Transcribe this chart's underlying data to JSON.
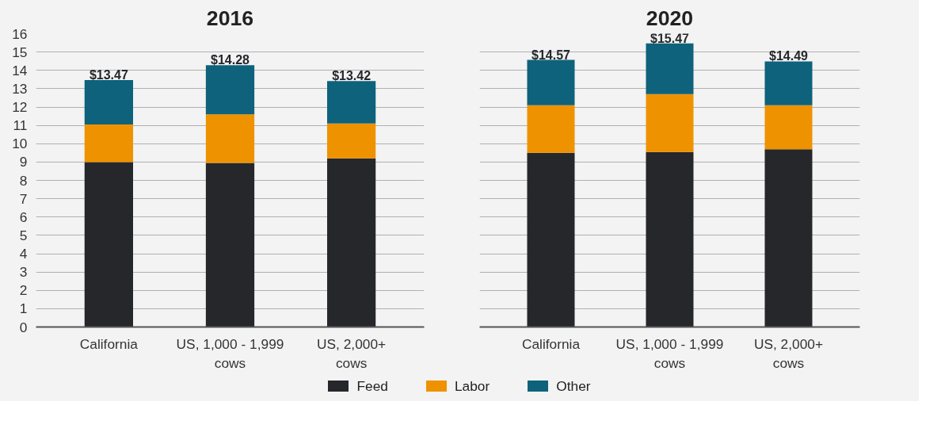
{
  "chart_data": [
    {
      "type": "bar",
      "title": "2016",
      "stacked": true,
      "categories": [
        "California",
        "US, 1,000 - 1,999 cows",
        "US, 2,000+ cows"
      ],
      "series": [
        {
          "name": "Feed",
          "color": "#26272b",
          "values": [
            9.0,
            8.95,
            9.2
          ]
        },
        {
          "name": "Labor",
          "color": "#ef9200",
          "values": [
            2.05,
            2.65,
            1.9
          ]
        },
        {
          "name": "Other",
          "color": "#0e627b",
          "values": [
            2.42,
            2.68,
            2.32
          ]
        }
      ],
      "totals": [
        "$13.47",
        "$14.28",
        "$13.42"
      ],
      "ylim": [
        0,
        16
      ],
      "yticks": [
        0,
        1,
        2,
        3,
        4,
        5,
        6,
        7,
        8,
        9,
        10,
        11,
        12,
        13,
        14,
        15,
        16
      ],
      "grid": "y",
      "legend": "bottom"
    },
    {
      "type": "bar",
      "title": "2020",
      "stacked": true,
      "categories": [
        "California",
        "US, 1,000 - 1,999 cows",
        "US, 2,000+ cows"
      ],
      "series": [
        {
          "color": "#26272b",
          "values": [
            9.5,
            9.55,
            9.7
          ]
        },
        {
          "color": "#ef9200",
          "values": [
            2.6,
            3.15,
            2.4
          ]
        },
        {
          "color": "#0e627b",
          "values": [
            2.47,
            2.77,
            2.39
          ]
        }
      ],
      "totals": [
        "$14.57",
        "$15.47",
        "$14.49"
      ],
      "ylim": [
        0,
        16
      ],
      "yticks": [
        0,
        1,
        2,
        3,
        4,
        5,
        6,
        7,
        8,
        9,
        10,
        11,
        12,
        13,
        14,
        15,
        16
      ],
      "grid": "y",
      "tick_labels": "x"
    }
  ]
}
